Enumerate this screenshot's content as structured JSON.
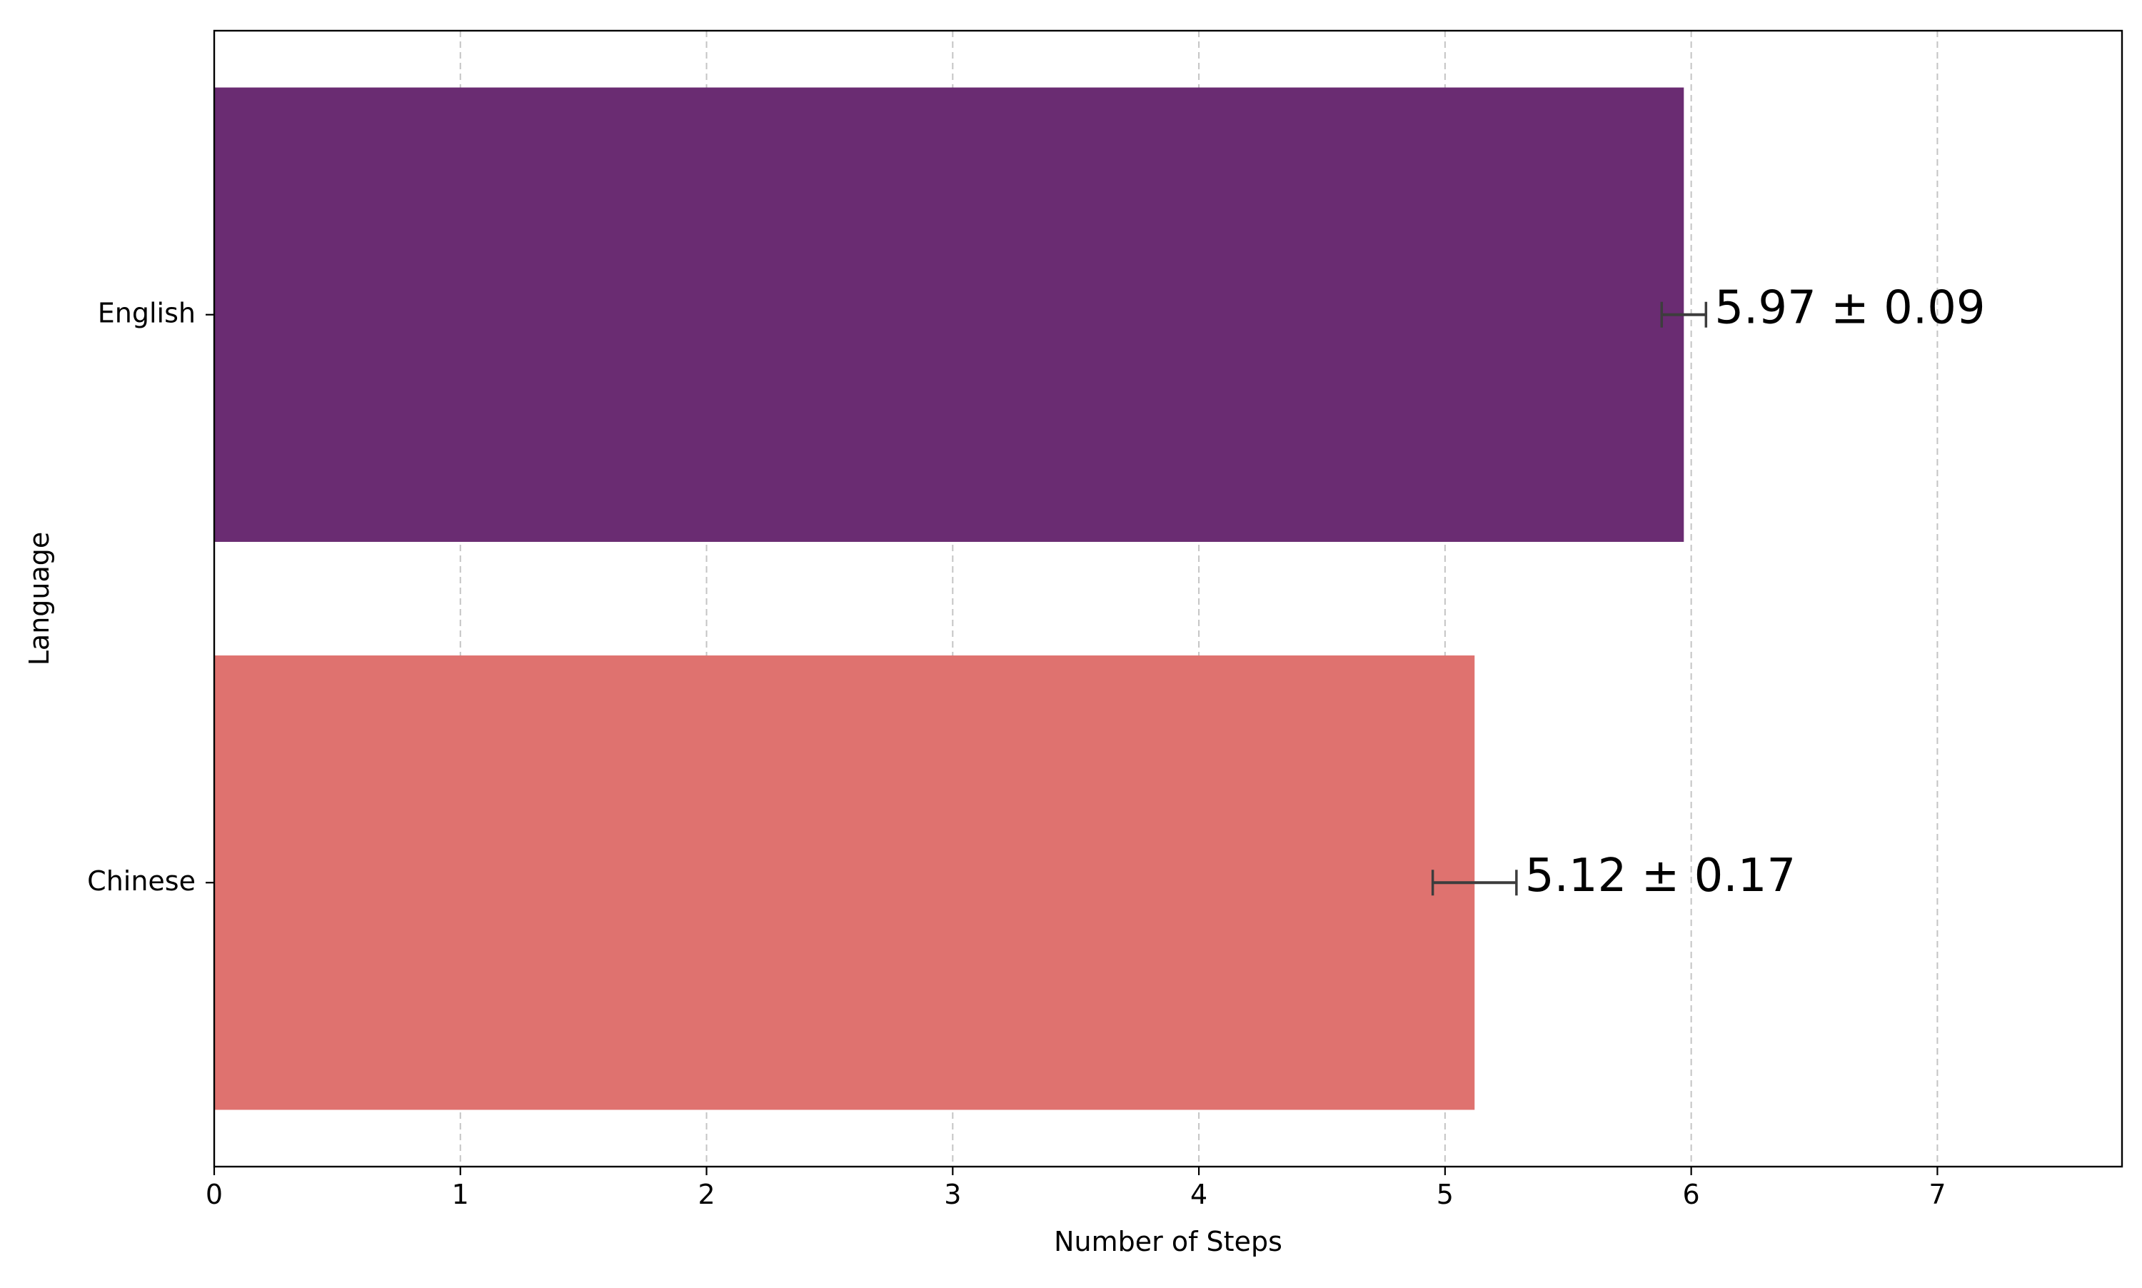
{
  "chart_data": {
    "type": "bar",
    "orientation": "horizontal",
    "categories": [
      "English",
      "Chinese"
    ],
    "values": [
      5.97,
      5.12
    ],
    "errors": [
      0.09,
      0.17
    ],
    "value_labels": [
      "5.97 ± 0.09",
      "5.12 ± 0.17"
    ],
    "colors": [
      "#6a2c72",
      "#df726f"
    ],
    "xlabel": "Number of Steps",
    "ylabel": "Language",
    "xlim": [
      0,
      7.75
    ],
    "xticks": [
      0,
      1,
      2,
      3,
      4,
      5,
      6,
      7
    ],
    "x_grid": true,
    "grid_style": "dashed",
    "legend": "none"
  }
}
